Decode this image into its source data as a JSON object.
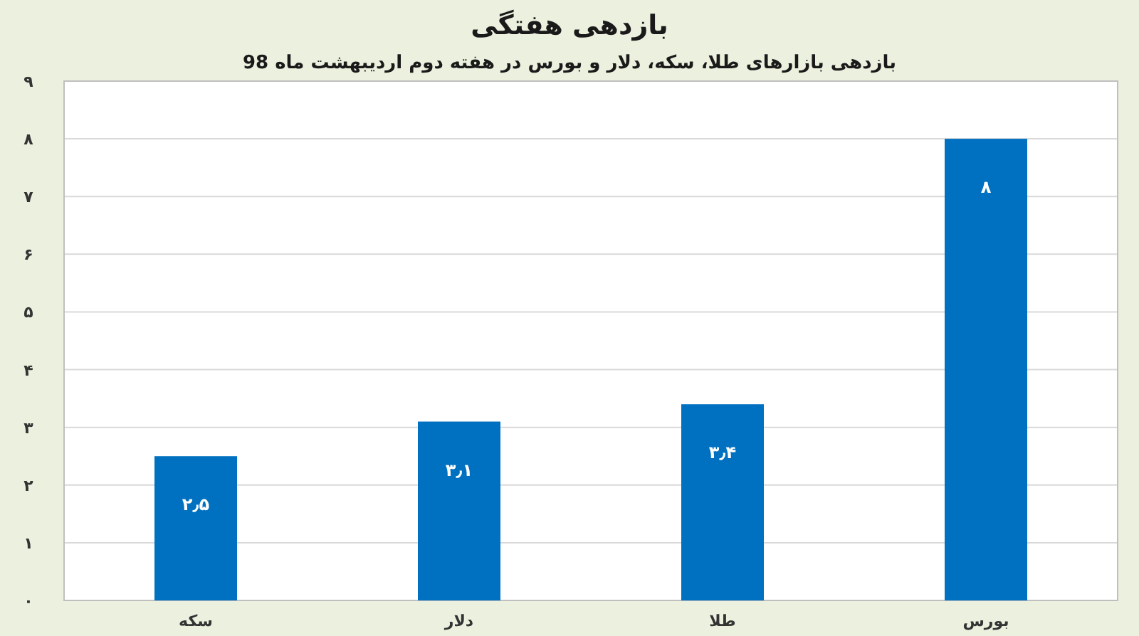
{
  "chart_data": {
    "type": "bar",
    "title": "بازدهی هفتگی",
    "subtitle": "بازدهی بازارهای طلا، سکه، دلار و بورس در هفته دوم اردیبهشت ماه 98",
    "categories": [
      "سکه",
      "دلار",
      "طلا",
      "بورس"
    ],
    "values": [
      2.5,
      3.1,
      3.4,
      8
    ],
    "value_labels": [
      "۲٫۵",
      "۳٫۱",
      "۳٫۴",
      "۸"
    ],
    "color": "#0070c0",
    "ylim": [
      0,
      9
    ],
    "yticks": [
      {
        "value": 0,
        "label": "۰"
      },
      {
        "value": 1,
        "label": "۱"
      },
      {
        "value": 2,
        "label": "۲"
      },
      {
        "value": 3,
        "label": "۳"
      },
      {
        "value": 4,
        "label": "۴"
      },
      {
        "value": 5,
        "label": "۵"
      },
      {
        "value": 6,
        "label": "۶"
      },
      {
        "value": 7,
        "label": "۷"
      },
      {
        "value": 8,
        "label": "۸"
      },
      {
        "value": 9,
        "label": "۹"
      }
    ],
    "grid": "y"
  }
}
